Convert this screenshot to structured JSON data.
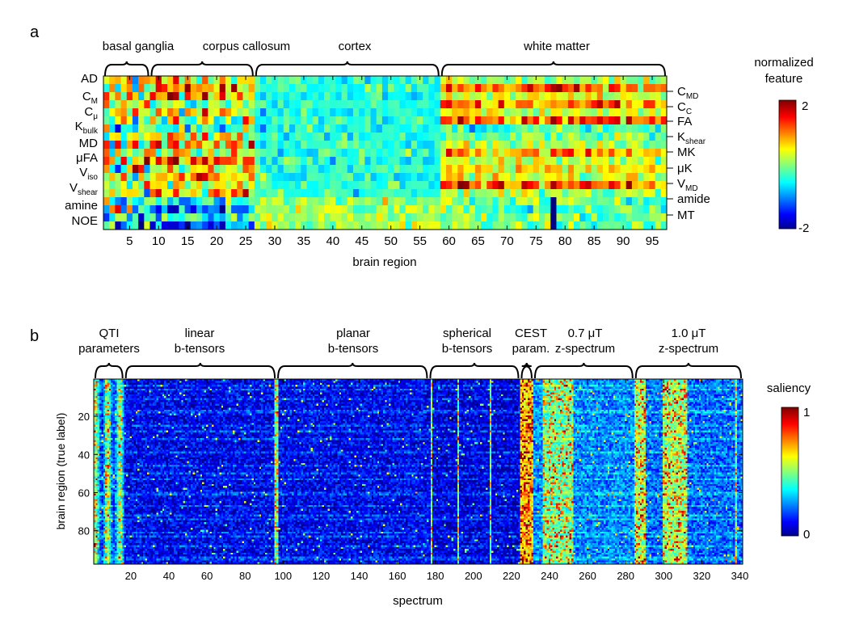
{
  "panels": [
    {
      "panel_label": "a",
      "xlabel": "brain region",
      "colorbar": {
        "title_lines": [
          "normalized",
          "feature"
        ],
        "tick_labels": [
          "2",
          "-2"
        ],
        "range": [
          -2,
          2
        ]
      },
      "group_labels": [
        "basal ganglia",
        "corpus callosum",
        "cortex",
        "white matter"
      ],
      "x_tick_labels": [
        "5",
        "10",
        "15",
        "20",
        "25",
        "30",
        "35",
        "40",
        "45",
        "50",
        "55",
        "60",
        "65",
        "70",
        "75",
        "80",
        "85",
        "90",
        "95"
      ],
      "left_row_labels": [
        {
          "main": "AD",
          "sub": ""
        },
        {
          "main": "C",
          "sub": "M"
        },
        {
          "main": "C",
          "sub": "μ"
        },
        {
          "main": "K",
          "sub": "bulk"
        },
        {
          "main": "MD",
          "sub": ""
        },
        {
          "main": "μFA",
          "sub": ""
        },
        {
          "main": "V",
          "sub": "iso"
        },
        {
          "main": "V",
          "sub": "shear"
        },
        {
          "main": "amine",
          "sub": ""
        },
        {
          "main": "NOE",
          "sub": ""
        }
      ],
      "right_row_labels": [
        {
          "main": "C",
          "sub": "MD"
        },
        {
          "main": "C",
          "sub": "C"
        },
        {
          "main": "FA",
          "sub": ""
        },
        {
          "main": "K",
          "sub": "shear"
        },
        {
          "main": "MK",
          "sub": ""
        },
        {
          "main": "μK",
          "sub": ""
        },
        {
          "main": "V",
          "sub": "MD"
        },
        {
          "main": "amide",
          "sub": ""
        },
        {
          "main": "MT",
          "sub": ""
        }
      ]
    },
    {
      "panel_label": "b",
      "xlabel": "spectrum",
      "ylabel": "brain region (true label)",
      "colorbar": {
        "title_lines": [
          "saliency"
        ],
        "tick_labels": [
          "1",
          "0"
        ],
        "range": [
          0,
          1
        ]
      },
      "group_labels": [
        [
          "QTI",
          "parameters"
        ],
        [
          "linear",
          "b-tensors"
        ],
        [
          "planar",
          "b-tensors"
        ],
        [
          "spherical",
          "b-tensors"
        ],
        [
          "CEST",
          "param."
        ],
        [
          "0.7 μT",
          "z-spectrum"
        ],
        [
          "1.0 μT",
          "z-spectrum"
        ]
      ],
      "x_tick_labels": [
        "20",
        "40",
        "60",
        "80",
        "100",
        "120",
        "140",
        "160",
        "180",
        "200",
        "220",
        "240",
        "260",
        "280",
        "300",
        "320",
        "340"
      ],
      "y_tick_labels": [
        "20",
        "40",
        "60",
        "80"
      ]
    }
  ],
  "chart_data": [
    {
      "type": "heatmap",
      "title": "",
      "xlabel": "brain region",
      "ylabel": "",
      "x_range": [
        1,
        97
      ],
      "n_columns": 97,
      "n_rows": 19,
      "row_features": [
        "AD",
        "CMD",
        "CM",
        "CC",
        "Cμ",
        "FA",
        "Kbulk",
        "Kshear",
        "MD",
        "MK",
        "μFA",
        "μK",
        "Viso",
        "VMD",
        "Vshear",
        "amide",
        "amine",
        "MT",
        "NOE"
      ],
      "region_groups": [
        {
          "name": "basal ganglia",
          "start": 1,
          "end": 8
        },
        {
          "name": "corpus callosum",
          "start": 9,
          "end": 26
        },
        {
          "name": "cortex",
          "start": 27,
          "end": 58
        },
        {
          "name": "white matter",
          "start": 59,
          "end": 97
        }
      ],
      "x_ticks": [
        5,
        10,
        15,
        20,
        25,
        30,
        35,
        40,
        45,
        50,
        55,
        60,
        65,
        70,
        75,
        80,
        85,
        90,
        95
      ],
      "color_scale": {
        "colormap": "jet",
        "min": -2,
        "max": 2
      },
      "values_summary": "cortex columns mostly near 0 (slightly negative); white matter shows high values (1-2) for CMD, CC, FA, MK, VMD rows; basal ganglia and corpus callosum highly variable; amine/NOE rows strongly negative (~-2) in corpus callosum columns 21-26; column 78 strongly negative for amide/MT rows"
    },
    {
      "type": "heatmap",
      "title": "",
      "xlabel": "spectrum",
      "ylabel": "brain region (true label)",
      "x_range": [
        1,
        341
      ],
      "y_range": [
        1,
        97
      ],
      "x_ticks": [
        20,
        40,
        60,
        80,
        100,
        120,
        140,
        160,
        180,
        200,
        220,
        240,
        260,
        280,
        300,
        320,
        340
      ],
      "y_ticks": [
        20,
        40,
        60,
        80
      ],
      "spectrum_groups": [
        {
          "name": "QTI parameters",
          "start": 1,
          "end": 16
        },
        {
          "name": "linear b-tensors",
          "start": 17,
          "end": 96
        },
        {
          "name": "planar b-tensors",
          "start": 97,
          "end": 176
        },
        {
          "name": "spherical b-tensors",
          "start": 177,
          "end": 224
        },
        {
          "name": "CEST param.",
          "start": 225,
          "end": 231
        },
        {
          "name": "0.7 μT z-spectrum",
          "start": 232,
          "end": 284
        },
        {
          "name": "1.0 μT z-spectrum",
          "start": 285,
          "end": 341
        }
      ],
      "color_scale": {
        "colormap": "jet",
        "min": 0,
        "max": 1
      },
      "values_summary": "saliency mostly low (0-0.2) across diffusion spectra; high saliency (0.6-1.0) at CEST parameters (225-231) and bands within z-spectra (~238-252, ~285-290, ~300-312); moderate saliency at QTI parameters (1-16) and thin lines near spectrum 96, 178, 192, 209"
    }
  ],
  "colors": {
    "jet": [
      "#00008f",
      "#0000ff",
      "#00ffff",
      "#ffff00",
      "#ff0000",
      "#800000"
    ]
  }
}
